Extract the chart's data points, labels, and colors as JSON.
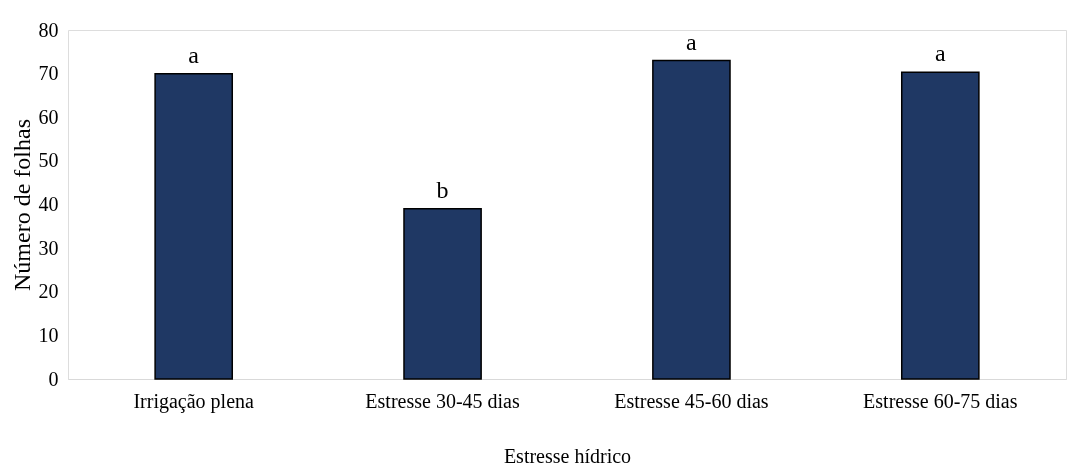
{
  "chart_data": {
    "type": "bar",
    "xlabel": "Estresse hídrico",
    "ylabel": "Número de folhas",
    "categories": [
      "Irrigação plena",
      "Estresse 30-45 dias",
      "Estresse 45-60 dias",
      "Estresse 60-75 dias"
    ],
    "values": [
      70,
      39,
      73,
      70.3
    ],
    "color": "#1f3864",
    "ylim": [
      0,
      80
    ],
    "yticks": [
      0,
      10,
      20,
      30,
      40,
      50,
      60,
      70,
      80
    ],
    "grid": false,
    "annotations": [
      {
        "text": "a",
        "x": "Irrigação plena",
        "y": 70
      },
      {
        "text": "b",
        "x": "Estresse 30-45 dias",
        "y": 39
      },
      {
        "text": "a",
        "x": "Estresse 45-60 dias",
        "y": 73
      },
      {
        "text": "a",
        "x": "Estresse 60-75 dias",
        "y": 70.3
      }
    ]
  }
}
